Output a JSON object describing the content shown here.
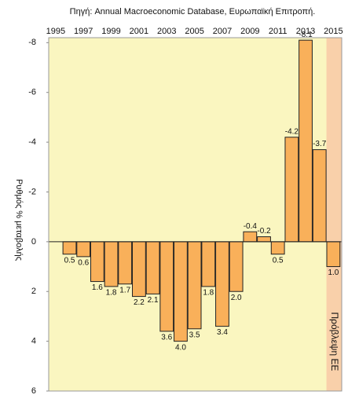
{
  "chart_data": {
    "type": "bar",
    "title": "Πηγή: Annual Macroeconomic Database, Ευρωπαϊκή Επιτροπή.",
    "y_label": "Ρυθμός % μεταβολής",
    "annotation": "Πρόβλεψη ΕΕ",
    "x": [
      1996,
      1997,
      1998,
      1999,
      2000,
      2001,
      2002,
      2003,
      2004,
      2005,
      2006,
      2007,
      2008,
      2009,
      2010,
      2011,
      2012,
      2013,
      2014,
      2015
    ],
    "values": [
      0.5,
      0.6,
      1.6,
      1.8,
      1.7,
      2.2,
      2.1,
      3.6,
      4.0,
      3.5,
      1.8,
      3.4,
      2.0,
      -0.4,
      -0.2,
      0.5,
      -4.2,
      -8.1,
      -3.7,
      1.0
    ],
    "value_labels": [
      "0.5",
      "0.6",
      "1.6",
      "1.8",
      "1.7",
      "2.2",
      "2.1",
      "3.6",
      "4.0",
      "3.5",
      "1.8",
      "3.4",
      "2.0",
      "-0.4",
      "-0.2",
      "0.5",
      "-4.2",
      "-8.1",
      "-3.7",
      "1.0"
    ],
    "color": "#f9b05a",
    "xlim": [
      1994.5,
      2015.6
    ],
    "xticks": [
      1995,
      1997,
      1999,
      2001,
      2003,
      2005,
      2007,
      2009,
      2011,
      2013,
      2015
    ],
    "ylim": [
      -8.2,
      6
    ],
    "yticks": [
      -8,
      -6,
      -4,
      -2,
      0,
      2,
      4,
      6
    ],
    "y_inverted": true,
    "forecast_range": [
      2014.5,
      2015.6
    ],
    "forecast_color": "#f9d0aa",
    "background": "#faf6c0"
  }
}
